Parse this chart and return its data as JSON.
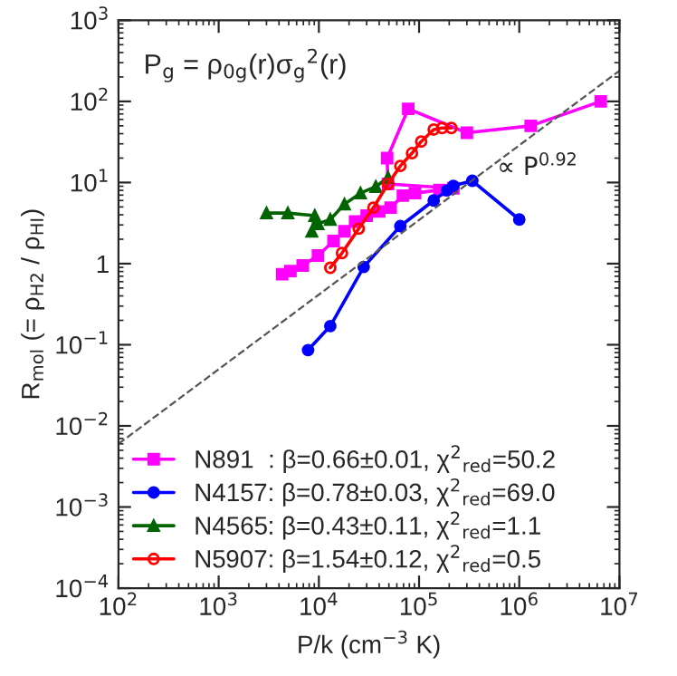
{
  "chart_data": {
    "type": "line",
    "xlabel": "P/k (cm$^{−3}$ K)",
    "ylabel": "R$_{mol}$ (= ρ$_{H2}$ / ρ$_{HI}$)",
    "log": "xy",
    "grid": false,
    "legend": "bottom left",
    "xlim": [
      100,
      10000000
    ],
    "ylim": [
      0.0001,
      1000
    ],
    "xticks": [
      {
        "value": 100,
        "label": "10$^{2}$"
      },
      {
        "value": 1000,
        "label": "10$^{3}$"
      },
      {
        "value": 10000,
        "label": "10$^{4}$"
      },
      {
        "value": 100000,
        "label": "10$^{5}$"
      },
      {
        "value": 1000000,
        "label": "10$^{6}$"
      },
      {
        "value": 10000000,
        "label": "10$^{7}$"
      }
    ],
    "yticks": [
      {
        "value": 0.0001,
        "label": "10$^{−4}$"
      },
      {
        "value": 0.001,
        "label": "10$^{−3}$"
      },
      {
        "value": 0.01,
        "label": "10$^{−2}$"
      },
      {
        "value": 0.1,
        "label": "10$^{−1}$"
      },
      1,
      {
        "value": 10,
        "label": "10$^{1}$"
      },
      {
        "value": 100,
        "label": "10$^{2}$"
      },
      {
        "value": 1000,
        "label": "10$^{3}$"
      }
    ],
    "annotations": [
      "P$_{g}$ = ρ$_{0g}$(r)σ$_{g}$$^{2}$(r)",
      {
        "text": "∝ P$^{0.92}$",
        "x": 600000,
        "y": 15
      }
    ],
    "series": [
      {
        "name": "N891  : β=0.66±0.01, χ$^{2}$$_{red}$=50.2",
        "color": "#ff00ff",
        "marker": "square",
        "x": [
          4300,
          5200,
          6900,
          9800,
          14000,
          18000,
          23000,
          30000,
          40000,
          52000,
          69000,
          91000,
          160000,
          220000,
          49000,
          48000,
          78000,
          300000,
          1300000,
          6500000
        ],
        "values": [
          0.74,
          0.81,
          0.95,
          1.26,
          1.9,
          2.5,
          3.3,
          3.9,
          4.4,
          4.9,
          6.9,
          7.4,
          8.1,
          8.5,
          9.6,
          20,
          81,
          41,
          50,
          100
        ]
      },
      {
        "name": "N4157: β=0.78±0.03, χ$^{2}$$_{red}$=69.0",
        "color": "#0000ff",
        "marker": "circle",
        "x": [
          7800,
          13000,
          28000,
          65000,
          140000,
          190000,
          220000,
          340000,
          1000000
        ],
        "values": [
          0.086,
          0.17,
          0.91,
          2.9,
          6.0,
          8.0,
          9.1,
          10.5,
          3.5
        ]
      },
      {
        "name": "N4565: β=0.43±0.11, χ$^{2}$$_{red}$=1.1",
        "color": "#006400",
        "marker": "triangle",
        "x": [
          3000,
          4900,
          9100,
          8500,
          9800,
          13000,
          18000,
          26000,
          37000,
          49000
        ],
        "values": [
          4.2,
          4.2,
          3.9,
          2.5,
          3.1,
          3.5,
          5.4,
          7.4,
          8.9,
          11.5
        ]
      },
      {
        "name": "N5907: β=1.54±0.12, χ$^{2}$$_{red}$=0.5",
        "color": "#ff0000",
        "marker": "open circle",
        "x": [
          13000,
          17000,
          25000,
          35000,
          49000,
          65000,
          85000,
          105000,
          140000,
          170000,
          210000
        ],
        "values": [
          0.89,
          1.35,
          2.7,
          4.9,
          9.6,
          16,
          23,
          32,
          45,
          47,
          47
        ]
      },
      {
        "color": "#555555",
        "line_style": "dashed",
        "marker": "none",
        "x": [
          100,
          10000000
        ],
        "values": [
          0.006,
          239
        ]
      }
    ]
  }
}
